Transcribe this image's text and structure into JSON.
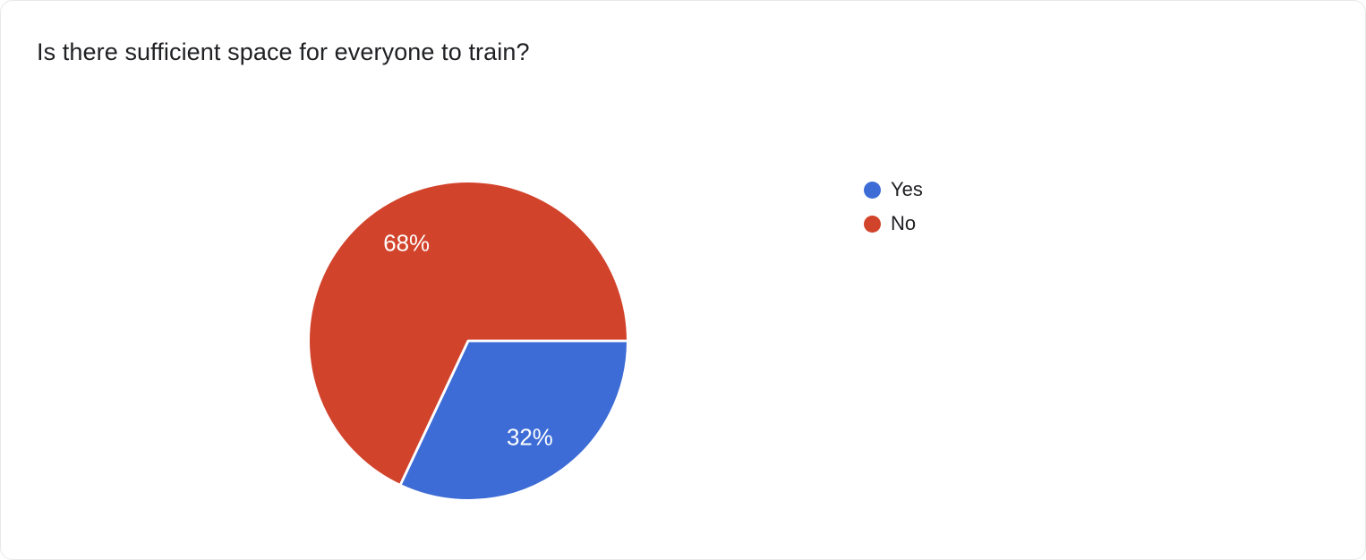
{
  "chart_data": {
    "type": "pie",
    "title": "Is there sufficient space for everyone to train?",
    "labels": [
      "Yes",
      "No"
    ],
    "values": [
      32,
      68
    ],
    "slice_labels": [
      "32%",
      "68%"
    ],
    "colors": [
      "#3d6cd6",
      "#d2432b"
    ],
    "slice_label_color": "#ffffff",
    "start_angle_deg": 0,
    "direction": "clockwise",
    "label_radius": 0.72,
    "legend_position": "right",
    "legend_items": [
      {
        "label": "Yes",
        "color": "#3d6cd6"
      },
      {
        "label": "No",
        "color": "#d2432b"
      }
    ]
  }
}
